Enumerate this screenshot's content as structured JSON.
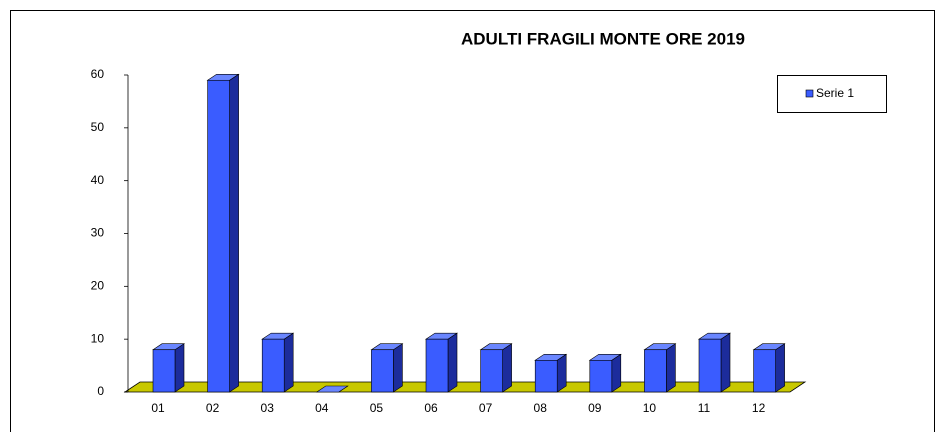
{
  "chart_data": {
    "type": "bar",
    "title": "ADULTI FRAGILI MONTE ORE 2019",
    "categories": [
      "01",
      "02",
      "03",
      "04",
      "05",
      "06",
      "07",
      "08",
      "09",
      "10",
      "11",
      "12"
    ],
    "series": [
      {
        "name": "Serie 1",
        "color": "#3a5cff",
        "values": [
          8,
          59,
          10,
          0,
          8,
          10,
          8,
          6,
          6,
          8,
          10,
          8
        ]
      }
    ],
    "ylim": [
      0,
      60
    ],
    "yticks": [
      0,
      10,
      20,
      30,
      40,
      50,
      60
    ],
    "grid": false,
    "legend": "top-right",
    "floor_color": "#c8c800"
  }
}
